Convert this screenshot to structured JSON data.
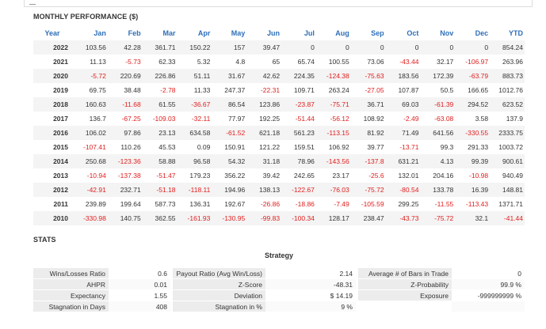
{
  "performance": {
    "title": "MONTHLY PERFORMANCE ($)",
    "headers": [
      "Year",
      "Jan",
      "Feb",
      "Mar",
      "Apr",
      "May",
      "Jun",
      "Jul",
      "Aug",
      "Sep",
      "Oct",
      "Nov",
      "Dec",
      "YTD"
    ],
    "rows": [
      [
        "2022",
        "103.56",
        "42.28",
        "361.71",
        "150.22",
        "157",
        "39.47",
        "0",
        "0",
        "0",
        "0",
        "0",
        "0",
        "854.24"
      ],
      [
        "2021",
        "11.13",
        "-5.73",
        "62.33",
        "5.32",
        "4.8",
        "65",
        "65.74",
        "100.55",
        "73.06",
        "-43.44",
        "32.17",
        "-106.97",
        "263.96"
      ],
      [
        "2020",
        "-5.72",
        "220.69",
        "226.86",
        "51.11",
        "31.67",
        "42.62",
        "224.35",
        "-124.38",
        "-75.63",
        "183.56",
        "172.39",
        "-63.79",
        "883.73"
      ],
      [
        "2019",
        "69.75",
        "38.48",
        "-2.78",
        "11.33",
        "247.37",
        "-22.31",
        "109.71",
        "263.24",
        "-27.05",
        "107.87",
        "50.5",
        "166.65",
        "1012.76"
      ],
      [
        "2018",
        "160.63",
        "-11.68",
        "61.55",
        "-36.67",
        "86.54",
        "123.86",
        "-23.87",
        "-75.71",
        "36.71",
        "69.03",
        "-61.39",
        "294.52",
        "623.52"
      ],
      [
        "2017",
        "136.7",
        "-67.25",
        "-109.03",
        "-32.11",
        "77.97",
        "192.25",
        "-51.44",
        "-56.12",
        "108.92",
        "-2.49",
        "-63.08",
        "3.58",
        "137.9"
      ],
      [
        "2016",
        "106.02",
        "97.86",
        "23.13",
        "634.58",
        "-61.52",
        "621.18",
        "561.23",
        "-113.15",
        "81.92",
        "71.49",
        "641.56",
        "-330.55",
        "2333.75"
      ],
      [
        "2015",
        "-107.41",
        "110.26",
        "45.53",
        "0.09",
        "150.91",
        "121.22",
        "159.51",
        "106.92",
        "39.77",
        "-13.71",
        "99.3",
        "291.33",
        "1003.72"
      ],
      [
        "2014",
        "250.68",
        "-123.36",
        "58.88",
        "96.58",
        "54.32",
        "31.18",
        "78.96",
        "-143.56",
        "-137.8",
        "631.21",
        "4.13",
        "99.39",
        "900.61"
      ],
      [
        "2013",
        "-10.94",
        "-137.38",
        "-51.47",
        "179.23",
        "356.22",
        "39.42",
        "242.65",
        "23.17",
        "-25.6",
        "132.01",
        "204.16",
        "-10.98",
        "940.49"
      ],
      [
        "2012",
        "-42.91",
        "232.71",
        "-51.18",
        "-118.11",
        "194.96",
        "138.13",
        "-122.67",
        "-76.03",
        "-75.72",
        "-80.54",
        "133.78",
        "16.39",
        "148.81"
      ],
      [
        "2011",
        "239.89",
        "199.64",
        "587.73",
        "136.31",
        "192.67",
        "-26.86",
        "-18.86",
        "-7.49",
        "-105.59",
        "299.25",
        "-11.55",
        "-113.43",
        "1371.71"
      ],
      [
        "2010",
        "-330.98",
        "140.75",
        "362.55",
        "-161.93",
        "-130.95",
        "-99.83",
        "-100.34",
        "128.17",
        "238.47",
        "-43.73",
        "-75.72",
        "32.1",
        "-41.44"
      ]
    ]
  },
  "stats": {
    "title": "STATS",
    "strategy_label": "Strategy",
    "rows": [
      [
        {
          "l": "Wins/Losses Ratio",
          "v": "0.6"
        },
        {
          "l": "Payout Ratio (Avg Win/Loss)",
          "v": "2.14"
        },
        {
          "l": "Average # of Bars in Trade",
          "v": "0"
        }
      ],
      [
        {
          "l": "AHPR",
          "v": "0.01"
        },
        {
          "l": "Z-Score",
          "v": "-48.31"
        },
        {
          "l": "Z-Probability",
          "v": "99.9 %"
        }
      ],
      [
        {
          "l": "Expectancy",
          "v": "1.55"
        },
        {
          "l": "Deviation",
          "v": "$ 14.19"
        },
        {
          "l": "Exposure",
          "v": "-999999999 %"
        }
      ],
      [
        {
          "l": "Stagnation in Days",
          "v": "408"
        },
        {
          "l": "Stagnation in %",
          "v": "9 %"
        },
        {
          "l": "",
          "v": ""
        }
      ]
    ]
  },
  "colors": {
    "header_blue": "#2e6fb8",
    "negative_red": "#e02020"
  }
}
